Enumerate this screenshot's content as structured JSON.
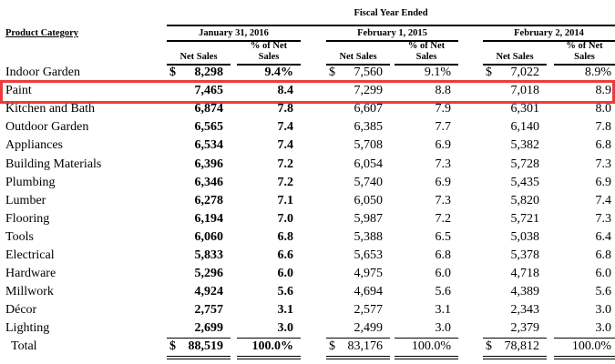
{
  "header": {
    "super_title": "Fiscal Year Ended",
    "category_label": "Product Category",
    "periods": [
      "January 31, 2016",
      "February 1, 2015",
      "February 2, 2014"
    ],
    "net_sales_label": "Net Sales",
    "pct_label_line1": "% of Net",
    "pct_label_line2": "Sales"
  },
  "highlighted_row": "Paint",
  "highlight_color": "#ee3b3b",
  "rows": [
    {
      "category": "Indoor Garden",
      "values": [
        [
          "$",
          "8,298",
          "9.4%"
        ],
        [
          "$",
          "7,560",
          "9.1%"
        ],
        [
          "$",
          "7,022",
          "8.9%"
        ]
      ]
    },
    {
      "category": "Paint",
      "values": [
        [
          "",
          "7,465",
          "8.4"
        ],
        [
          "",
          "7,299",
          "8.8"
        ],
        [
          "",
          "7,018",
          "8.9"
        ]
      ]
    },
    {
      "category": "Kitchen and Bath",
      "values": [
        [
          "",
          "6,874",
          "7.8"
        ],
        [
          "",
          "6,607",
          "7.9"
        ],
        [
          "",
          "6,301",
          "8.0"
        ]
      ]
    },
    {
      "category": "Outdoor Garden",
      "values": [
        [
          "",
          "6,565",
          "7.4"
        ],
        [
          "",
          "6,385",
          "7.7"
        ],
        [
          "",
          "6,140",
          "7.8"
        ]
      ]
    },
    {
      "category": "Appliances",
      "values": [
        [
          "",
          "6,534",
          "7.4"
        ],
        [
          "",
          "5,708",
          "6.9"
        ],
        [
          "",
          "5,382",
          "6.8"
        ]
      ]
    },
    {
      "category": "Building Materials",
      "values": [
        [
          "",
          "6,396",
          "7.2"
        ],
        [
          "",
          "6,054",
          "7.3"
        ],
        [
          "",
          "5,728",
          "7.3"
        ]
      ]
    },
    {
      "category": "Plumbing",
      "values": [
        [
          "",
          "6,346",
          "7.2"
        ],
        [
          "",
          "5,740",
          "6.9"
        ],
        [
          "",
          "5,435",
          "6.9"
        ]
      ]
    },
    {
      "category": "Lumber",
      "values": [
        [
          "",
          "6,278",
          "7.1"
        ],
        [
          "",
          "6,050",
          "7.3"
        ],
        [
          "",
          "5,820",
          "7.4"
        ]
      ]
    },
    {
      "category": "Flooring",
      "values": [
        [
          "",
          "6,194",
          "7.0"
        ],
        [
          "",
          "5,987",
          "7.2"
        ],
        [
          "",
          "5,721",
          "7.3"
        ]
      ]
    },
    {
      "category": "Tools",
      "values": [
        [
          "",
          "6,060",
          "6.8"
        ],
        [
          "",
          "5,388",
          "6.5"
        ],
        [
          "",
          "5,038",
          "6.4"
        ]
      ]
    },
    {
      "category": "Electrical",
      "values": [
        [
          "",
          "5,833",
          "6.6"
        ],
        [
          "",
          "5,653",
          "6.8"
        ],
        [
          "",
          "5,378",
          "6.8"
        ]
      ]
    },
    {
      "category": "Hardware",
      "values": [
        [
          "",
          "5,296",
          "6.0"
        ],
        [
          "",
          "4,975",
          "6.0"
        ],
        [
          "",
          "4,718",
          "6.0"
        ]
      ]
    },
    {
      "category": "Millwork",
      "values": [
        [
          "",
          "4,924",
          "5.6"
        ],
        [
          "",
          "4,694",
          "5.6"
        ],
        [
          "",
          "4,389",
          "5.6"
        ]
      ]
    },
    {
      "category": "Décor",
      "values": [
        [
          "",
          "2,757",
          "3.1"
        ],
        [
          "",
          "2,577",
          "3.1"
        ],
        [
          "",
          "2,343",
          "3.0"
        ]
      ]
    },
    {
      "category": "Lighting",
      "values": [
        [
          "",
          "2,699",
          "3.0"
        ],
        [
          "",
          "2,499",
          "3.0"
        ],
        [
          "",
          "2,379",
          "3.0"
        ]
      ]
    }
  ],
  "total": {
    "category": "Total",
    "values": [
      [
        "$",
        "88,519",
        "100.0%"
      ],
      [
        "$",
        "83,176",
        "100.0%"
      ],
      [
        "$",
        "78,812",
        "100.0%"
      ]
    ]
  }
}
